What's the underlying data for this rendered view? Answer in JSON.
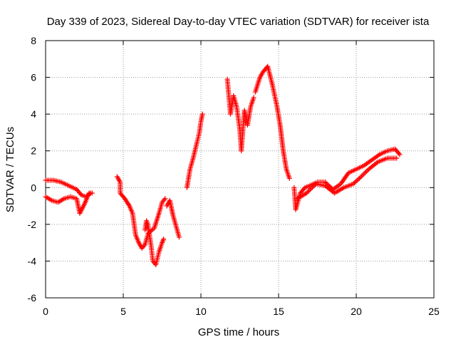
{
  "chart_data": {
    "type": "scatter",
    "title": "Day 339 of 2023, Sidereal Day-to-day VTEC variation (SDTVAR) for receiver ista",
    "xlabel": "GPS time / hours",
    "ylabel": "SDTVAR / TECUs",
    "xlim": [
      0,
      25
    ],
    "ylim": [
      -6,
      8
    ],
    "xticks": [
      0,
      5,
      10,
      15,
      20,
      25
    ],
    "yticks": [
      -6,
      -4,
      -2,
      0,
      2,
      4,
      6,
      8
    ],
    "grid": true,
    "marker": "+",
    "color": "#ff0000",
    "series": [
      {
        "name": "upper",
        "points": [
          [
            0,
            0.4
          ],
          [
            0.5,
            0.4
          ],
          [
            1,
            0.3
          ],
          [
            1.5,
            0.1
          ],
          [
            2,
            -0.1
          ],
          [
            2.3,
            -0.4
          ],
          [
            2.6,
            -0.5
          ],
          [
            2.9,
            -0.3
          ]
        ]
      },
      {
        "name": "lower",
        "points": [
          [
            0,
            -0.5
          ],
          [
            0.4,
            -0.7
          ],
          [
            0.8,
            -0.8
          ],
          [
            1.2,
            -0.6
          ],
          [
            1.6,
            -0.5
          ],
          [
            2,
            -0.6
          ],
          [
            2.2,
            -1.4
          ],
          [
            2.5,
            -0.9
          ],
          [
            2.8,
            -0.3
          ],
          [
            3,
            -0.3
          ]
        ]
      },
      {
        "name": "dip_a",
        "points": [
          [
            4.6,
            0.6
          ],
          [
            4.8,
            0.3
          ],
          [
            4.8,
            -0.3
          ],
          [
            5.1,
            -0.6
          ],
          [
            5.4,
            -1
          ],
          [
            5.6,
            -1.4
          ],
          [
            5.7,
            -2
          ],
          [
            5.8,
            -2.6
          ],
          [
            6,
            -3
          ],
          [
            6.2,
            -3.3
          ],
          [
            6.4,
            -3.1
          ],
          [
            6.6,
            -2.5
          ],
          [
            7,
            -2.2
          ],
          [
            7.3,
            -1.4
          ],
          [
            7.5,
            -0.8
          ],
          [
            7.7,
            -0.6
          ]
        ]
      },
      {
        "name": "dip_b",
        "points": [
          [
            6.4,
            -2.3
          ],
          [
            6.5,
            -1.8
          ],
          [
            6.6,
            -2.1
          ],
          [
            6.8,
            -3.2
          ],
          [
            6.9,
            -4
          ],
          [
            7.1,
            -4.2
          ],
          [
            7.3,
            -3.5
          ],
          [
            7.5,
            -3
          ],
          [
            7.6,
            -2.8
          ]
        ]
      },
      {
        "name": "dip_c",
        "points": [
          [
            7.8,
            -1
          ],
          [
            8,
            -0.7
          ],
          [
            8.2,
            -1.5
          ],
          [
            8.4,
            -2.1
          ],
          [
            8.6,
            -2.7
          ]
        ]
      },
      {
        "name": "rise",
        "points": [
          [
            9.1,
            0
          ],
          [
            9.3,
            1
          ],
          [
            9.5,
            1.6
          ],
          [
            9.7,
            2.3
          ],
          [
            9.9,
            3
          ],
          [
            10,
            3.6
          ],
          [
            10.1,
            4
          ]
        ]
      },
      {
        "name": "block_a",
        "points": [
          [
            11.7,
            5.9
          ],
          [
            11.9,
            4
          ],
          [
            12.1,
            5
          ],
          [
            12.3,
            4.4
          ],
          [
            12.5,
            3.2
          ],
          [
            12.6,
            2
          ],
          [
            12.8,
            4.2
          ],
          [
            13,
            3.4
          ],
          [
            13.2,
            4.4
          ],
          [
            13.4,
            4.9
          ]
        ]
      },
      {
        "name": "block_b",
        "points": [
          [
            13.5,
            5.2
          ],
          [
            13.8,
            6
          ],
          [
            14,
            6.3
          ],
          [
            14.3,
            6.6
          ],
          [
            14.6,
            5.6
          ],
          [
            14.9,
            4.4
          ],
          [
            15.1,
            3.4
          ],
          [
            15.3,
            2
          ],
          [
            15.5,
            1
          ],
          [
            15.7,
            0.5
          ]
        ]
      },
      {
        "name": "flat_a",
        "points": [
          [
            16,
            0
          ],
          [
            16.1,
            -1.2
          ],
          [
            16.4,
            -0.3
          ],
          [
            16.7,
            0
          ],
          [
            17,
            0.1
          ],
          [
            17.5,
            0.3
          ],
          [
            18,
            0.3
          ],
          [
            18.5,
            -0.1
          ],
          [
            19,
            0.2
          ],
          [
            19.5,
            0.8
          ],
          [
            20,
            1
          ],
          [
            20.5,
            1.2
          ],
          [
            21,
            1.5
          ],
          [
            21.5,
            1.8
          ],
          [
            22,
            2
          ],
          [
            22.5,
            2.1
          ],
          [
            22.8,
            1.8
          ]
        ]
      },
      {
        "name": "flat_b",
        "points": [
          [
            16.2,
            -0.6
          ],
          [
            16.8,
            -0.3
          ],
          [
            17.4,
            0.2
          ],
          [
            18,
            0.1
          ],
          [
            18.6,
            -0.3
          ],
          [
            19.2,
            0
          ],
          [
            19.8,
            0.2
          ],
          [
            20.2,
            0.5
          ],
          [
            20.8,
            1
          ],
          [
            21.4,
            1.4
          ],
          [
            22,
            1.6
          ],
          [
            22.6,
            1.6
          ]
        ]
      }
    ]
  }
}
